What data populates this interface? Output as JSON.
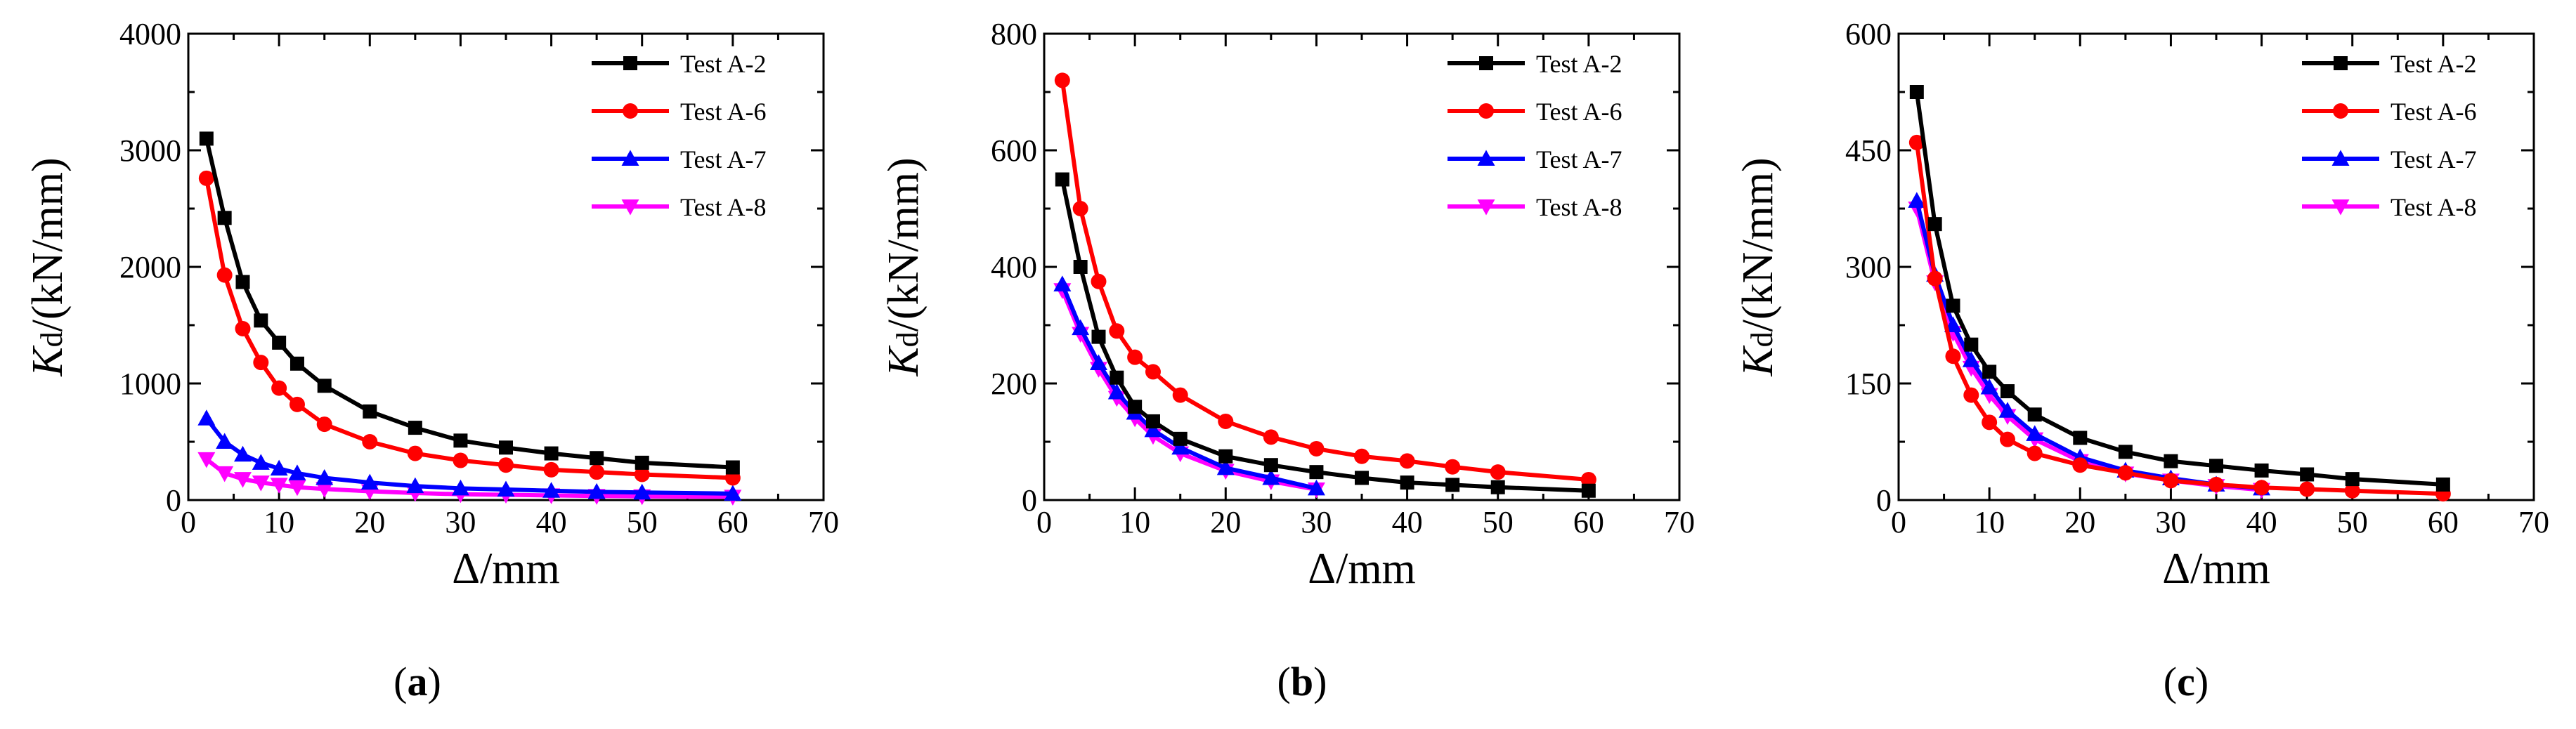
{
  "chart_data": [
    {
      "type": "line",
      "panel": "a",
      "caption": "(a)",
      "xlabel": "Δ/mm",
      "ylabel_main": "K",
      "ylabel_sub": "d",
      "ylabel_rest": "/(kN/mm)",
      "xlim": [
        0,
        70
      ],
      "ylim": [
        0,
        4000
      ],
      "xticks": [
        0,
        10,
        20,
        30,
        40,
        50,
        60,
        70
      ],
      "yticks": [
        0,
        1000,
        2000,
        3000,
        4000
      ],
      "legend_position": "top-right",
      "series": [
        {
          "name": "Test A-2",
          "color": "#000000",
          "marker": "square",
          "x": [
            2,
            4,
            6,
            8,
            10,
            12,
            15,
            20,
            25,
            30,
            35,
            40,
            45,
            50,
            60
          ],
          "y": [
            3100,
            2420,
            1870,
            1540,
            1350,
            1170,
            980,
            760,
            620,
            510,
            450,
            400,
            360,
            320,
            280
          ]
        },
        {
          "name": "Test A-6",
          "color": "#ff0000",
          "marker": "circle",
          "x": [
            2,
            4,
            6,
            8,
            10,
            12,
            15,
            20,
            25,
            30,
            35,
            40,
            45,
            50,
            60
          ],
          "y": [
            2760,
            1930,
            1470,
            1180,
            960,
            820,
            650,
            500,
            400,
            340,
            300,
            260,
            240,
            220,
            190
          ]
        },
        {
          "name": "Test A-7",
          "color": "#0000ff",
          "marker": "triangle-up",
          "x": [
            2,
            4,
            6,
            8,
            10,
            12,
            15,
            20,
            25,
            30,
            35,
            40,
            45,
            50,
            60
          ],
          "y": [
            700,
            500,
            390,
            320,
            270,
            230,
            190,
            150,
            120,
            100,
            90,
            80,
            70,
            65,
            55
          ]
        },
        {
          "name": "Test A-8",
          "color": "#ff00ff",
          "marker": "triangle-down",
          "x": [
            2,
            4,
            6,
            8,
            10,
            12,
            15,
            20,
            25,
            30,
            35,
            40,
            45,
            50,
            60
          ],
          "y": [
            350,
            230,
            180,
            150,
            130,
            110,
            95,
            75,
            60,
            50,
            45,
            40,
            35,
            32,
            28
          ]
        }
      ]
    },
    {
      "type": "line",
      "panel": "b",
      "caption": "(b)",
      "xlabel": "Δ/mm",
      "ylabel_main": "K",
      "ylabel_sub": "d",
      "ylabel_rest": "/(kN/mm)",
      "xlim": [
        0,
        70
      ],
      "ylim": [
        0,
        800
      ],
      "xticks": [
        0,
        10,
        20,
        30,
        40,
        50,
        60,
        70
      ],
      "yticks": [
        0,
        200,
        400,
        600,
        800
      ],
      "legend_position": "top-right",
      "series": [
        {
          "name": "Test A-2",
          "color": "#000000",
          "marker": "square",
          "x": [
            2,
            4,
            6,
            8,
            10,
            12,
            15,
            20,
            25,
            30,
            35,
            40,
            45,
            50,
            60
          ],
          "y": [
            550,
            400,
            280,
            210,
            160,
            135,
            105,
            75,
            60,
            48,
            38,
            30,
            26,
            22,
            16
          ]
        },
        {
          "name": "Test A-6",
          "color": "#ff0000",
          "marker": "circle",
          "x": [
            2,
            4,
            6,
            8,
            10,
            12,
            15,
            20,
            25,
            30,
            35,
            40,
            45,
            50,
            60
          ],
          "y": [
            720,
            500,
            375,
            290,
            245,
            220,
            180,
            135,
            108,
            88,
            75,
            67,
            57,
            48,
            35
          ]
        },
        {
          "name": "Test A-7",
          "color": "#0000ff",
          "marker": "triangle-up",
          "x": [
            2,
            4,
            6,
            8,
            10,
            12,
            15,
            20,
            25,
            30
          ],
          "y": [
            370,
            295,
            235,
            185,
            150,
            120,
            90,
            55,
            38,
            20
          ]
        },
        {
          "name": "Test A-8",
          "color": "#ff00ff",
          "marker": "triangle-down",
          "x": [
            2,
            4,
            6,
            8,
            10,
            12,
            15,
            20,
            25,
            30
          ],
          "y": [
            360,
            285,
            225,
            175,
            140,
            110,
            80,
            50,
            32,
            18
          ]
        }
      ]
    },
    {
      "type": "line",
      "panel": "c",
      "caption": "(c)",
      "xlabel": "Δ/mm",
      "ylabel_main": "K",
      "ylabel_sub": "d",
      "ylabel_rest": "/(kN/mm)",
      "xlim": [
        0,
        70
      ],
      "ylim": [
        0,
        600
      ],
      "xticks": [
        0,
        10,
        20,
        30,
        40,
        50,
        60,
        70
      ],
      "yticks": [
        0,
        150,
        300,
        450,
        600
      ],
      "legend_position": "top-right",
      "series": [
        {
          "name": "Test A-2",
          "color": "#000000",
          "marker": "square",
          "x": [
            2,
            4,
            6,
            8,
            10,
            12,
            15,
            20,
            25,
            30,
            35,
            40,
            45,
            50,
            60
          ],
          "y": [
            525,
            355,
            250,
            200,
            165,
            140,
            110,
            80,
            62,
            50,
            44,
            38,
            33,
            27,
            20
          ]
        },
        {
          "name": "Test A-6",
          "color": "#ff0000",
          "marker": "circle",
          "x": [
            2,
            4,
            6,
            8,
            10,
            12,
            15,
            20,
            25,
            30,
            35,
            40,
            45,
            50,
            60
          ],
          "y": [
            460,
            285,
            185,
            135,
            100,
            78,
            60,
            45,
            35,
            25,
            20,
            16,
            14,
            12,
            8
          ]
        },
        {
          "name": "Test A-7",
          "color": "#0000ff",
          "marker": "triangle-up",
          "x": [
            2,
            4,
            6,
            8,
            10,
            12,
            15,
            20,
            25,
            30,
            35,
            40
          ],
          "y": [
            385,
            290,
            225,
            180,
            145,
            115,
            85,
            55,
            38,
            28,
            20,
            15
          ]
        },
        {
          "name": "Test A-8",
          "color": "#ff00ff",
          "marker": "triangle-down",
          "x": [
            2,
            4,
            6,
            8,
            10,
            12,
            15,
            20,
            25,
            30,
            35,
            40
          ],
          "y": [
            375,
            280,
            215,
            170,
            135,
            108,
            78,
            50,
            34,
            25,
            18,
            13
          ]
        }
      ]
    }
  ]
}
